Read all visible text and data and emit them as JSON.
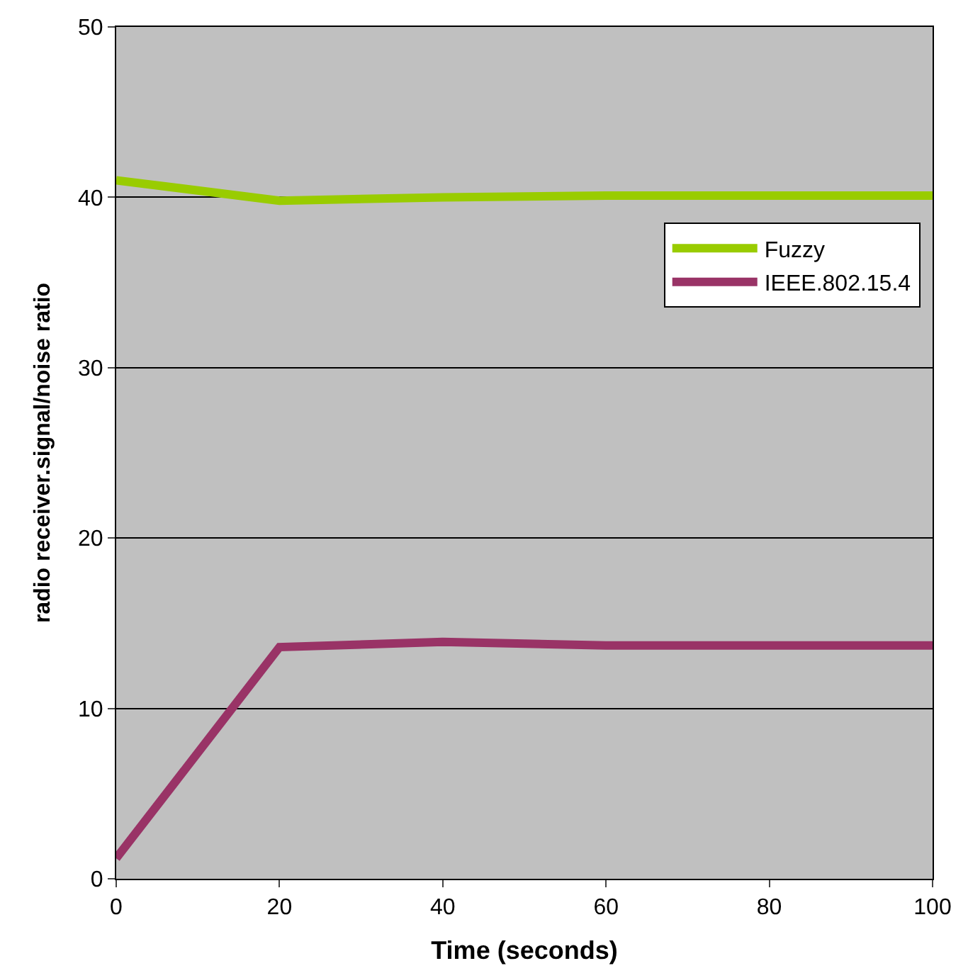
{
  "chart_data": {
    "type": "line",
    "xlabel": "Time (seconds)",
    "ylabel": "radio receiver.signal/noise ratio",
    "x": [
      0,
      20,
      40,
      60,
      80,
      100
    ],
    "series": [
      {
        "name": "Fuzzy",
        "color": "#99cc00",
        "values": [
          41,
          39.8,
          40,
          40.1,
          40.1,
          40.1
        ]
      },
      {
        "name": "IEEE.802.15.4",
        "color": "#993366",
        "values": [
          1.2,
          13.6,
          13.9,
          13.7,
          13.7,
          13.7
        ]
      }
    ],
    "xlim": [
      0,
      100
    ],
    "xticks": [
      0,
      20,
      40,
      60,
      80,
      100
    ],
    "ylim": [
      0,
      50
    ],
    "yticks": [
      0,
      10,
      20,
      30,
      40,
      50
    ],
    "grid": "y",
    "legend": "top right",
    "marker": "none",
    "line_style": "solid"
  }
}
